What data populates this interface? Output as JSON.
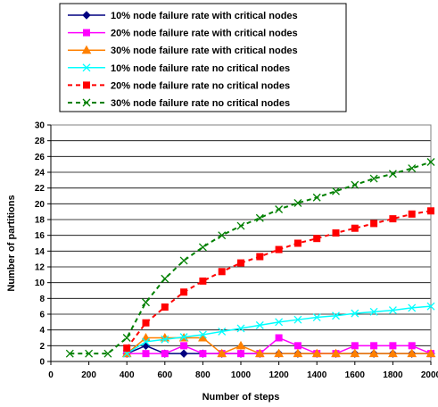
{
  "chart_data": {
    "type": "line",
    "xlabel": "Number of steps",
    "ylabel": "Number of partitions",
    "xlim": [
      0,
      2000
    ],
    "ylim": [
      0,
      30
    ],
    "xticks": [
      0,
      200,
      400,
      600,
      800,
      1000,
      1200,
      1400,
      1600,
      1800,
      2000
    ],
    "yticks": [
      0,
      2,
      4,
      6,
      8,
      10,
      12,
      14,
      16,
      18,
      20,
      22,
      24,
      26,
      28,
      30
    ],
    "grid": "horizontal",
    "legend_position": "top",
    "series": [
      {
        "name": "10% node failure rate with critical nodes",
        "color": "#000080",
        "marker": "diamond",
        "line": "solid",
        "x": [
          400,
          500,
          600,
          700,
          800,
          900,
          1000,
          1100,
          1200,
          1300,
          1400,
          1500,
          1600,
          1700,
          1800,
          1900,
          2000
        ],
        "y": [
          1,
          2,
          1,
          1,
          1,
          1,
          1,
          1,
          1,
          1,
          1,
          1,
          1,
          1,
          1,
          1,
          1
        ]
      },
      {
        "name": "20% node failure rate with critical nodes",
        "color": "#ff00ff",
        "marker": "square",
        "line": "solid",
        "x": [
          400,
          500,
          600,
          700,
          800,
          900,
          1000,
          1100,
          1200,
          1300,
          1400,
          1500,
          1600,
          1700,
          1800,
          1900,
          2000
        ],
        "y": [
          1,
          1,
          1,
          2,
          1,
          1,
          1,
          1,
          3,
          2,
          1,
          1,
          2,
          2,
          2,
          2,
          1
        ]
      },
      {
        "name": "30% node failure rate with critical nodes",
        "color": "#ff8000",
        "marker": "triangle",
        "line": "solid",
        "x": [
          400,
          500,
          600,
          700,
          800,
          900,
          1000,
          1100,
          1200,
          1300,
          1400,
          1500,
          1600,
          1700,
          1800,
          1900,
          2000
        ],
        "y": [
          1,
          3,
          3,
          3,
          3,
          1,
          2,
          1,
          1,
          1,
          1,
          1,
          1,
          1,
          1,
          1,
          1
        ]
      },
      {
        "name": "10% node failure rate no critical nodes",
        "color": "#00ffff",
        "marker": "x",
        "line": "solid",
        "x": [
          400,
          500,
          600,
          700,
          800,
          900,
          1000,
          1100,
          1200,
          1300,
          1400,
          1500,
          1600,
          1700,
          1800,
          1900,
          2000
        ],
        "y": [
          1,
          2.5,
          2.8,
          3.1,
          3.4,
          3.8,
          4.2,
          4.6,
          5.0,
          5.3,
          5.6,
          5.8,
          6.1,
          6.3,
          6.5,
          6.8,
          7.0
        ]
      },
      {
        "name": "20% node failure rate no critical nodes",
        "color": "#ff0000",
        "marker": "square",
        "line": "dashed",
        "x": [
          400,
          500,
          600,
          700,
          800,
          900,
          1000,
          1100,
          1200,
          1300,
          1400,
          1500,
          1600,
          1700,
          1800,
          1900,
          2000
        ],
        "y": [
          1.7,
          4.9,
          6.9,
          8.8,
          10.2,
          11.4,
          12.5,
          13.3,
          14.2,
          15.0,
          15.6,
          16.3,
          16.9,
          17.5,
          18.1,
          18.7,
          19.1
        ]
      },
      {
        "name": "30% node failure rate no critical nodes",
        "color": "#008000",
        "marker": "x",
        "line": "dashed",
        "x": [
          100,
          200,
          300,
          400,
          500,
          600,
          700,
          800,
          900,
          1000,
          1100,
          1200,
          1300,
          1400,
          1500,
          1600,
          1700,
          1800,
          1900,
          2000
        ],
        "y": [
          1,
          1,
          1,
          3,
          7.5,
          10.5,
          12.8,
          14.5,
          16.0,
          17.2,
          18.2,
          19.3,
          20.1,
          20.8,
          21.6,
          22.4,
          23.2,
          23.8,
          24.5,
          25.3
        ]
      }
    ]
  }
}
